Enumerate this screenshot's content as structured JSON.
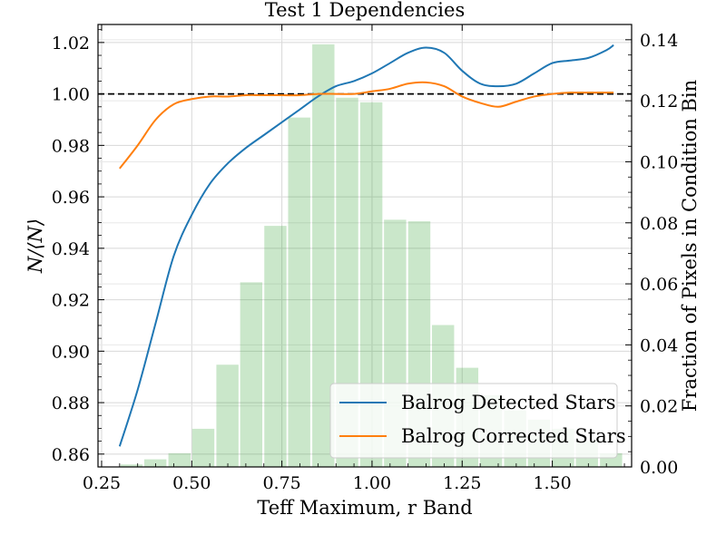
{
  "chart_data": {
    "type": "bar+line",
    "title": "Test 1 Dependencies",
    "xlabel": "Teff Maximum, r Band",
    "ylabel_left": "N/⟨N⟩",
    "ylabel_right": "Fraction of Pixels in Condition Bin",
    "xlim": [
      0.24,
      1.72
    ],
    "ylim_left": [
      0.855,
      1.027
    ],
    "ylim_right": [
      0.0,
      0.145
    ],
    "x_ticks": [
      0.25,
      0.5,
      0.75,
      1.0,
      1.25,
      1.5
    ],
    "x_tick_labels": [
      "0.25",
      "0.50",
      "0.75",
      "1.00",
      "1.25",
      "1.50"
    ],
    "y_left_ticks": [
      0.86,
      0.88,
      0.9,
      0.92,
      0.94,
      0.96,
      0.98,
      1.0,
      1.02
    ],
    "y_left_tick_labels": [
      "0.86",
      "0.88",
      "0.90",
      "0.92",
      "0.94",
      "0.96",
      "0.98",
      "1.00",
      "1.02"
    ],
    "y_right_ticks": [
      0.0,
      0.02,
      0.04,
      0.06,
      0.08,
      0.1,
      0.12,
      0.14
    ],
    "y_right_tick_labels": [
      "0.00",
      "0.02",
      "0.04",
      "0.06",
      "0.08",
      "0.10",
      "0.12",
      "0.14"
    ],
    "reference_line": {
      "y": 1.0,
      "style": "dashed",
      "color": "#000000"
    },
    "grid": true,
    "histogram": {
      "color": "#2ca02c",
      "opacity": 0.25,
      "bin_width": 0.0665,
      "bin_centers": [
        0.333,
        0.399,
        0.466,
        0.532,
        0.599,
        0.665,
        0.732,
        0.798,
        0.865,
        0.931,
        0.998,
        1.064,
        1.131,
        1.197,
        1.264,
        1.33,
        1.397,
        1.463,
        1.53,
        1.596,
        1.663
      ],
      "values": [
        0.0008,
        0.0025,
        0.0045,
        0.0125,
        0.0335,
        0.0605,
        0.079,
        0.1145,
        0.1385,
        0.121,
        0.1195,
        0.081,
        0.0805,
        0.0465,
        0.0325,
        0.0235,
        0.0185,
        0.0155,
        0.0125,
        0.0085,
        0.0045
      ]
    },
    "series": [
      {
        "name": "Balrog Detected Stars",
        "color": "#1f77b4",
        "x": [
          0.3,
          0.35,
          0.4,
          0.45,
          0.5,
          0.55,
          0.6,
          0.65,
          0.7,
          0.75,
          0.8,
          0.85,
          0.9,
          0.95,
          1.0,
          1.05,
          1.1,
          1.15,
          1.2,
          1.25,
          1.3,
          1.35,
          1.4,
          1.45,
          1.5,
          1.55,
          1.6,
          1.65,
          1.67
        ],
        "y": [
          0.863,
          0.885,
          0.911,
          0.937,
          0.953,
          0.965,
          0.973,
          0.979,
          0.984,
          0.989,
          0.994,
          0.999,
          1.003,
          1.005,
          1.008,
          1.012,
          1.016,
          1.018,
          1.016,
          1.009,
          1.004,
          1.003,
          1.004,
          1.008,
          1.012,
          1.013,
          1.014,
          1.017,
          1.019
        ]
      },
      {
        "name": "Balrog Corrected Stars",
        "color": "#ff7f0e",
        "x": [
          0.3,
          0.35,
          0.4,
          0.45,
          0.5,
          0.55,
          0.6,
          0.65,
          0.7,
          0.75,
          0.8,
          0.85,
          0.9,
          0.95,
          1.0,
          1.05,
          1.1,
          1.15,
          1.2,
          1.25,
          1.3,
          1.35,
          1.4,
          1.45,
          1.5,
          1.55,
          1.6,
          1.65,
          1.67
        ],
        "y": [
          0.971,
          0.98,
          0.99,
          0.996,
          0.998,
          0.999,
          0.999,
          0.9995,
          0.9995,
          0.9995,
          0.9995,
          1.0,
          1.0,
          1.0,
          1.001,
          1.002,
          1.004,
          1.0045,
          1.003,
          0.999,
          0.9965,
          0.995,
          0.997,
          0.999,
          1.0,
          1.0005,
          1.0005,
          1.0005,
          1.0005
        ]
      }
    ],
    "legend": {
      "position": "lower-right",
      "entries": [
        "Balrog Detected Stars",
        "Balrog Corrected Stars"
      ]
    }
  }
}
